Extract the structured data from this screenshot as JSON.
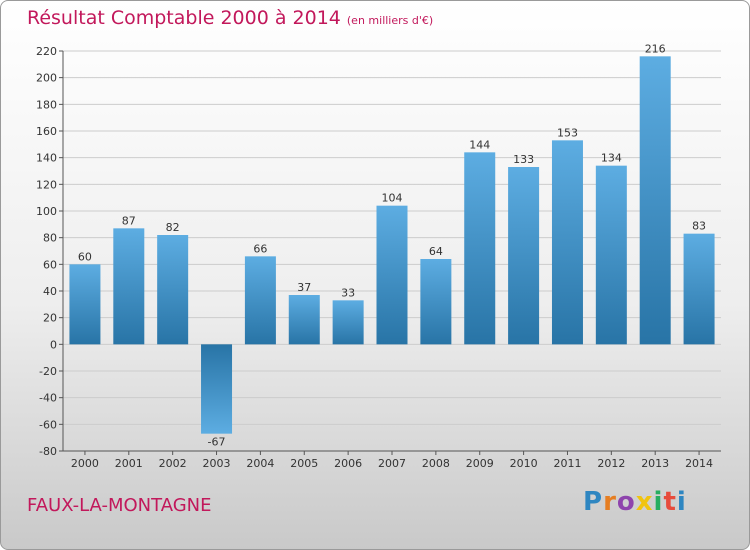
{
  "title": "Résultat Comptable 2000 à 2014",
  "unit_note": "(en milliers d'€)",
  "commune": "FAUX-LA-MONTAGNE",
  "logo": {
    "text": "Proxiti",
    "letters": [
      "P",
      "r",
      "o",
      "x",
      "i",
      "t",
      "i"
    ],
    "colors": [
      "#2e86c1",
      "#e67e22",
      "#8e44ad",
      "#f1c40f",
      "#27ae60",
      "#e74c3c",
      "#2e86c1"
    ]
  },
  "colors": {
    "bar_light": "#5dade2",
    "bar_dark": "#2874a6",
    "title": "#c2185b",
    "grid": "#cccccc"
  },
  "chart_data": {
    "type": "bar",
    "title": "Résultat Comptable 2000 à 2014",
    "xlabel": "",
    "ylabel": "",
    "ylim": [
      -80,
      220
    ],
    "yticks": [
      220,
      200,
      180,
      160,
      140,
      120,
      100,
      80,
      60,
      40,
      20,
      0,
      -20,
      -40,
      -60,
      -80
    ],
    "categories": [
      "2000",
      "2001",
      "2002",
      "2003",
      "2004",
      "2005",
      "2006",
      "2007",
      "2008",
      "2009",
      "2010",
      "2011",
      "2012",
      "2013",
      "2014"
    ],
    "values": [
      60,
      87,
      82,
      -67,
      66,
      37,
      33,
      104,
      64,
      144,
      133,
      153,
      134,
      216,
      83
    ],
    "grid": true
  }
}
